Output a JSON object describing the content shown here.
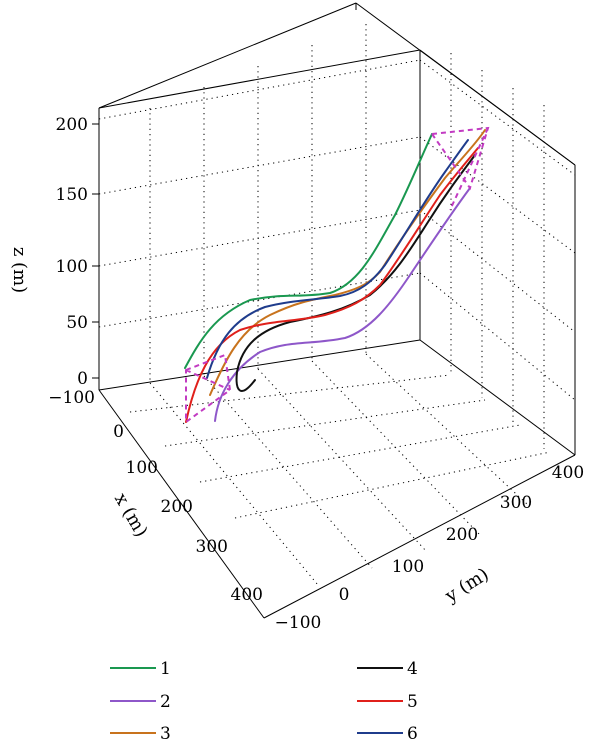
{
  "chart_data": {
    "type": "line3d",
    "title": "",
    "xlabel": "x (m)",
    "ylabel": "y (m)",
    "zlabel": "z (m)",
    "xlim": [
      -100,
      450
    ],
    "ylim": [
      -100,
      450
    ],
    "zlim": [
      0,
      200
    ],
    "x_ticks": [
      "−100",
      "0",
      "100",
      "200",
      "300",
      "400"
    ],
    "y_ticks": [
      "−100",
      "0",
      "100",
      "200",
      "300",
      "400"
    ],
    "z_ticks": [
      "0",
      "50",
      "100",
      "150",
      "200"
    ],
    "grid": true,
    "legend_position": "bottom",
    "formation_color": "#c23bc2",
    "series": [
      {
        "name": "1",
        "color": "#1a9850"
      },
      {
        "name": "2",
        "color": "#8e57c9"
      },
      {
        "name": "3",
        "color": "#c8731d"
      },
      {
        "name": "4",
        "color": "#111111"
      },
      {
        "name": "5",
        "color": "#e0201b"
      },
      {
        "name": "6",
        "color": "#1f3c8c"
      }
    ]
  }
}
